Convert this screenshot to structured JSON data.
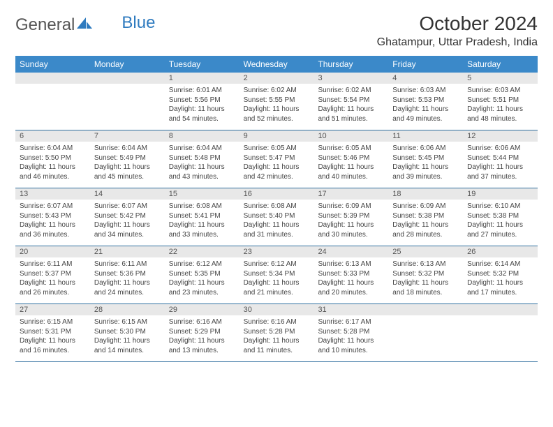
{
  "logo": {
    "text_main": "General",
    "text_accent": "Blue",
    "accent_color": "#2f7bbf"
  },
  "header": {
    "title": "October 2024",
    "location": "Ghatampur, Uttar Pradesh, India"
  },
  "calendar": {
    "weekdays": [
      "Sunday",
      "Monday",
      "Tuesday",
      "Wednesday",
      "Thursday",
      "Friday",
      "Saturday"
    ],
    "header_bg": "#3b89c9",
    "daynum_bg": "#e8e8e8",
    "week_divider_color": "#2f6f9f",
    "weeks": [
      [
        {
          "day": "",
          "sunrise": "",
          "sunset": "",
          "daylight": ""
        },
        {
          "day": "",
          "sunrise": "",
          "sunset": "",
          "daylight": ""
        },
        {
          "day": "1",
          "sunrise": "Sunrise: 6:01 AM",
          "sunset": "Sunset: 5:56 PM",
          "daylight": "Daylight: 11 hours and 54 minutes."
        },
        {
          "day": "2",
          "sunrise": "Sunrise: 6:02 AM",
          "sunset": "Sunset: 5:55 PM",
          "daylight": "Daylight: 11 hours and 52 minutes."
        },
        {
          "day": "3",
          "sunrise": "Sunrise: 6:02 AM",
          "sunset": "Sunset: 5:54 PM",
          "daylight": "Daylight: 11 hours and 51 minutes."
        },
        {
          "day": "4",
          "sunrise": "Sunrise: 6:03 AM",
          "sunset": "Sunset: 5:53 PM",
          "daylight": "Daylight: 11 hours and 49 minutes."
        },
        {
          "day": "5",
          "sunrise": "Sunrise: 6:03 AM",
          "sunset": "Sunset: 5:51 PM",
          "daylight": "Daylight: 11 hours and 48 minutes."
        }
      ],
      [
        {
          "day": "6",
          "sunrise": "Sunrise: 6:04 AM",
          "sunset": "Sunset: 5:50 PM",
          "daylight": "Daylight: 11 hours and 46 minutes."
        },
        {
          "day": "7",
          "sunrise": "Sunrise: 6:04 AM",
          "sunset": "Sunset: 5:49 PM",
          "daylight": "Daylight: 11 hours and 45 minutes."
        },
        {
          "day": "8",
          "sunrise": "Sunrise: 6:04 AM",
          "sunset": "Sunset: 5:48 PM",
          "daylight": "Daylight: 11 hours and 43 minutes."
        },
        {
          "day": "9",
          "sunrise": "Sunrise: 6:05 AM",
          "sunset": "Sunset: 5:47 PM",
          "daylight": "Daylight: 11 hours and 42 minutes."
        },
        {
          "day": "10",
          "sunrise": "Sunrise: 6:05 AM",
          "sunset": "Sunset: 5:46 PM",
          "daylight": "Daylight: 11 hours and 40 minutes."
        },
        {
          "day": "11",
          "sunrise": "Sunrise: 6:06 AM",
          "sunset": "Sunset: 5:45 PM",
          "daylight": "Daylight: 11 hours and 39 minutes."
        },
        {
          "day": "12",
          "sunrise": "Sunrise: 6:06 AM",
          "sunset": "Sunset: 5:44 PM",
          "daylight": "Daylight: 11 hours and 37 minutes."
        }
      ],
      [
        {
          "day": "13",
          "sunrise": "Sunrise: 6:07 AM",
          "sunset": "Sunset: 5:43 PM",
          "daylight": "Daylight: 11 hours and 36 minutes."
        },
        {
          "day": "14",
          "sunrise": "Sunrise: 6:07 AM",
          "sunset": "Sunset: 5:42 PM",
          "daylight": "Daylight: 11 hours and 34 minutes."
        },
        {
          "day": "15",
          "sunrise": "Sunrise: 6:08 AM",
          "sunset": "Sunset: 5:41 PM",
          "daylight": "Daylight: 11 hours and 33 minutes."
        },
        {
          "day": "16",
          "sunrise": "Sunrise: 6:08 AM",
          "sunset": "Sunset: 5:40 PM",
          "daylight": "Daylight: 11 hours and 31 minutes."
        },
        {
          "day": "17",
          "sunrise": "Sunrise: 6:09 AM",
          "sunset": "Sunset: 5:39 PM",
          "daylight": "Daylight: 11 hours and 30 minutes."
        },
        {
          "day": "18",
          "sunrise": "Sunrise: 6:09 AM",
          "sunset": "Sunset: 5:38 PM",
          "daylight": "Daylight: 11 hours and 28 minutes."
        },
        {
          "day": "19",
          "sunrise": "Sunrise: 6:10 AM",
          "sunset": "Sunset: 5:38 PM",
          "daylight": "Daylight: 11 hours and 27 minutes."
        }
      ],
      [
        {
          "day": "20",
          "sunrise": "Sunrise: 6:11 AM",
          "sunset": "Sunset: 5:37 PM",
          "daylight": "Daylight: 11 hours and 26 minutes."
        },
        {
          "day": "21",
          "sunrise": "Sunrise: 6:11 AM",
          "sunset": "Sunset: 5:36 PM",
          "daylight": "Daylight: 11 hours and 24 minutes."
        },
        {
          "day": "22",
          "sunrise": "Sunrise: 6:12 AM",
          "sunset": "Sunset: 5:35 PM",
          "daylight": "Daylight: 11 hours and 23 minutes."
        },
        {
          "day": "23",
          "sunrise": "Sunrise: 6:12 AM",
          "sunset": "Sunset: 5:34 PM",
          "daylight": "Daylight: 11 hours and 21 minutes."
        },
        {
          "day": "24",
          "sunrise": "Sunrise: 6:13 AM",
          "sunset": "Sunset: 5:33 PM",
          "daylight": "Daylight: 11 hours and 20 minutes."
        },
        {
          "day": "25",
          "sunrise": "Sunrise: 6:13 AM",
          "sunset": "Sunset: 5:32 PM",
          "daylight": "Daylight: 11 hours and 18 minutes."
        },
        {
          "day": "26",
          "sunrise": "Sunrise: 6:14 AM",
          "sunset": "Sunset: 5:32 PM",
          "daylight": "Daylight: 11 hours and 17 minutes."
        }
      ],
      [
        {
          "day": "27",
          "sunrise": "Sunrise: 6:15 AM",
          "sunset": "Sunset: 5:31 PM",
          "daylight": "Daylight: 11 hours and 16 minutes."
        },
        {
          "day": "28",
          "sunrise": "Sunrise: 6:15 AM",
          "sunset": "Sunset: 5:30 PM",
          "daylight": "Daylight: 11 hours and 14 minutes."
        },
        {
          "day": "29",
          "sunrise": "Sunrise: 6:16 AM",
          "sunset": "Sunset: 5:29 PM",
          "daylight": "Daylight: 11 hours and 13 minutes."
        },
        {
          "day": "30",
          "sunrise": "Sunrise: 6:16 AM",
          "sunset": "Sunset: 5:28 PM",
          "daylight": "Daylight: 11 hours and 11 minutes."
        },
        {
          "day": "31",
          "sunrise": "Sunrise: 6:17 AM",
          "sunset": "Sunset: 5:28 PM",
          "daylight": "Daylight: 11 hours and 10 minutes."
        },
        {
          "day": "",
          "sunrise": "",
          "sunset": "",
          "daylight": ""
        },
        {
          "day": "",
          "sunrise": "",
          "sunset": "",
          "daylight": ""
        }
      ]
    ]
  }
}
